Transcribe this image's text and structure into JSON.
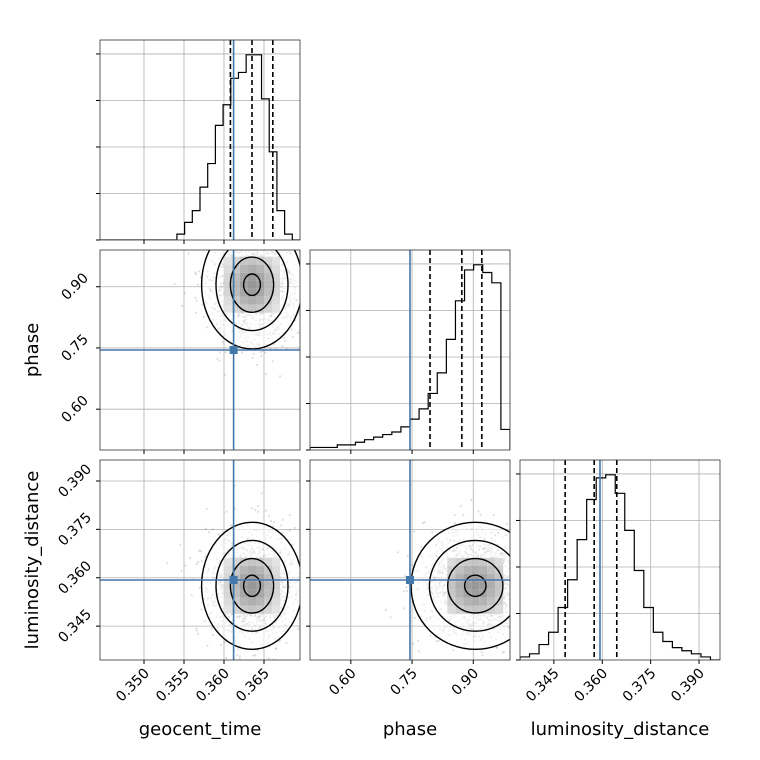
{
  "chart_data": {
    "type": "corner",
    "truth_color": "#4477aa",
    "parameters": [
      {
        "name": "geocent_time",
        "label": "geocent_time",
        "range": [
          0.3445,
          0.3695
        ],
        "ticks": [
          0.35,
          0.355,
          0.36,
          0.365
        ],
        "tick_labels": [
          "0.350",
          "0.355",
          "0.360",
          "0.365"
        ],
        "truth": 0.3612
      },
      {
        "name": "phase",
        "label": "phase",
        "range": [
          0.5,
          0.99
        ],
        "ticks": [
          0.6,
          0.75,
          0.9
        ],
        "tick_labels": [
          "0.60",
          "0.75",
          "0.90"
        ],
        "truth": 0.745
      },
      {
        "name": "luminosity_distance",
        "label": "luminosity_distance",
        "range": [
          0.3345,
          0.3965
        ],
        "ticks": [
          0.345,
          0.36,
          0.375,
          0.39
        ],
        "tick_labels": [
          "0.345",
          "0.360",
          "0.375",
          "0.390"
        ],
        "truth": 0.3593
      }
    ],
    "marginals": [
      {
        "parameter": "geocent_time",
        "quantiles": [
          0.3608,
          0.3635,
          0.3661
        ],
        "bin_edges_range": [
          0.3445,
          0.3695
        ],
        "counts": [
          0,
          0,
          0,
          0,
          0,
          0,
          0,
          0,
          0,
          0,
          2,
          6,
          10,
          18,
          26,
          39,
          46,
          55,
          57,
          63,
          63,
          48,
          30,
          10,
          2,
          0
        ]
      },
      {
        "parameter": "phase",
        "quantiles": [
          0.794,
          0.872,
          0.921
        ],
        "bin_edges_range": [
          0.5,
          0.99
        ],
        "counts": [
          1,
          1,
          1,
          2,
          2,
          3,
          4,
          5,
          6,
          7,
          9,
          12,
          16,
          22,
          30,
          43,
          58,
          70,
          72,
          69,
          65,
          8
        ]
      },
      {
        "parameter": "luminosity_distance",
        "quantiles": [
          0.3485,
          0.3575,
          0.3645
        ],
        "bin_edges_range": [
          0.3345,
          0.3965
        ],
        "counts": [
          1,
          2,
          5,
          9,
          17,
          26,
          39,
          52,
          59,
          60,
          54,
          42,
          29,
          17,
          9,
          6,
          4,
          3,
          2,
          1,
          0
        ]
      }
    ],
    "joint": [
      {
        "x": "geocent_time",
        "y": "phase",
        "center": [
          0.3635,
          0.905
        ],
        "sigma": [
          0.0024,
          0.06
        ]
      },
      {
        "x": "geocent_time",
        "y": "luminosity_distance",
        "center": [
          0.3635,
          0.3575
        ],
        "sigma": [
          0.0024,
          0.0075
        ]
      },
      {
        "x": "phase",
        "y": "luminosity_distance",
        "center": [
          0.905,
          0.3575
        ],
        "sigma": [
          0.06,
          0.0075
        ]
      }
    ]
  }
}
